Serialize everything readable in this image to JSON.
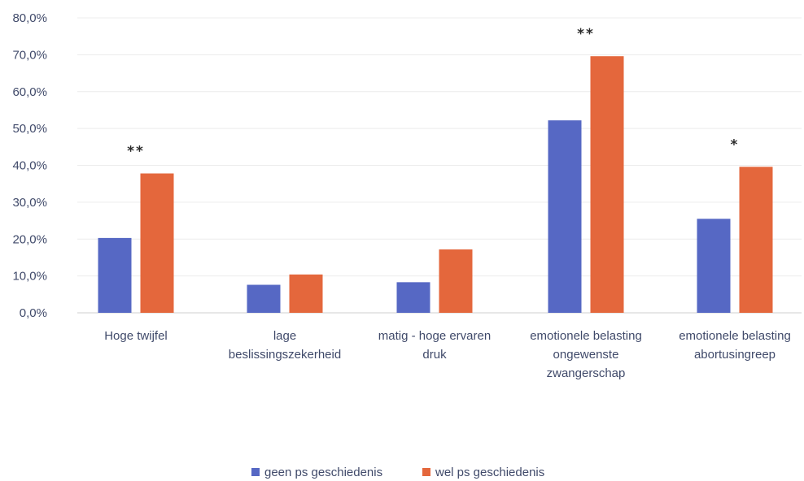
{
  "chart_data": {
    "type": "bar",
    "title": "",
    "xlabel": "",
    "ylabel": "",
    "ylim": [
      0,
      80
    ],
    "y_ticks": [
      "0,0%",
      "10,0%",
      "20,0%",
      "30,0%",
      "40,0%",
      "50,0%",
      "60,0%",
      "70,0%",
      "80,0%"
    ],
    "grid": true,
    "legend_position": "bottom",
    "categories": [
      [
        "Hoge twijfel"
      ],
      [
        "lage",
        "beslissingszekerheid"
      ],
      [
        "matig - hoge ervaren",
        "druk"
      ],
      [
        "emotionele belasting",
        "ongewenste",
        "zwangerschap"
      ],
      [
        "emotionele belasting",
        "abortusingreep"
      ]
    ],
    "series": [
      {
        "name": "geen ps geschiedenis",
        "color": "#5668c4",
        "values": [
          20.3,
          7.6,
          8.3,
          52.2,
          25.5
        ]
      },
      {
        "name": "wel ps geschiedenis",
        "color": "#e4673c",
        "values": [
          37.8,
          10.4,
          17.2,
          69.6,
          39.6
        ]
      }
    ],
    "annotations": [
      "**",
      "",
      "",
      "**",
      "*"
    ]
  }
}
